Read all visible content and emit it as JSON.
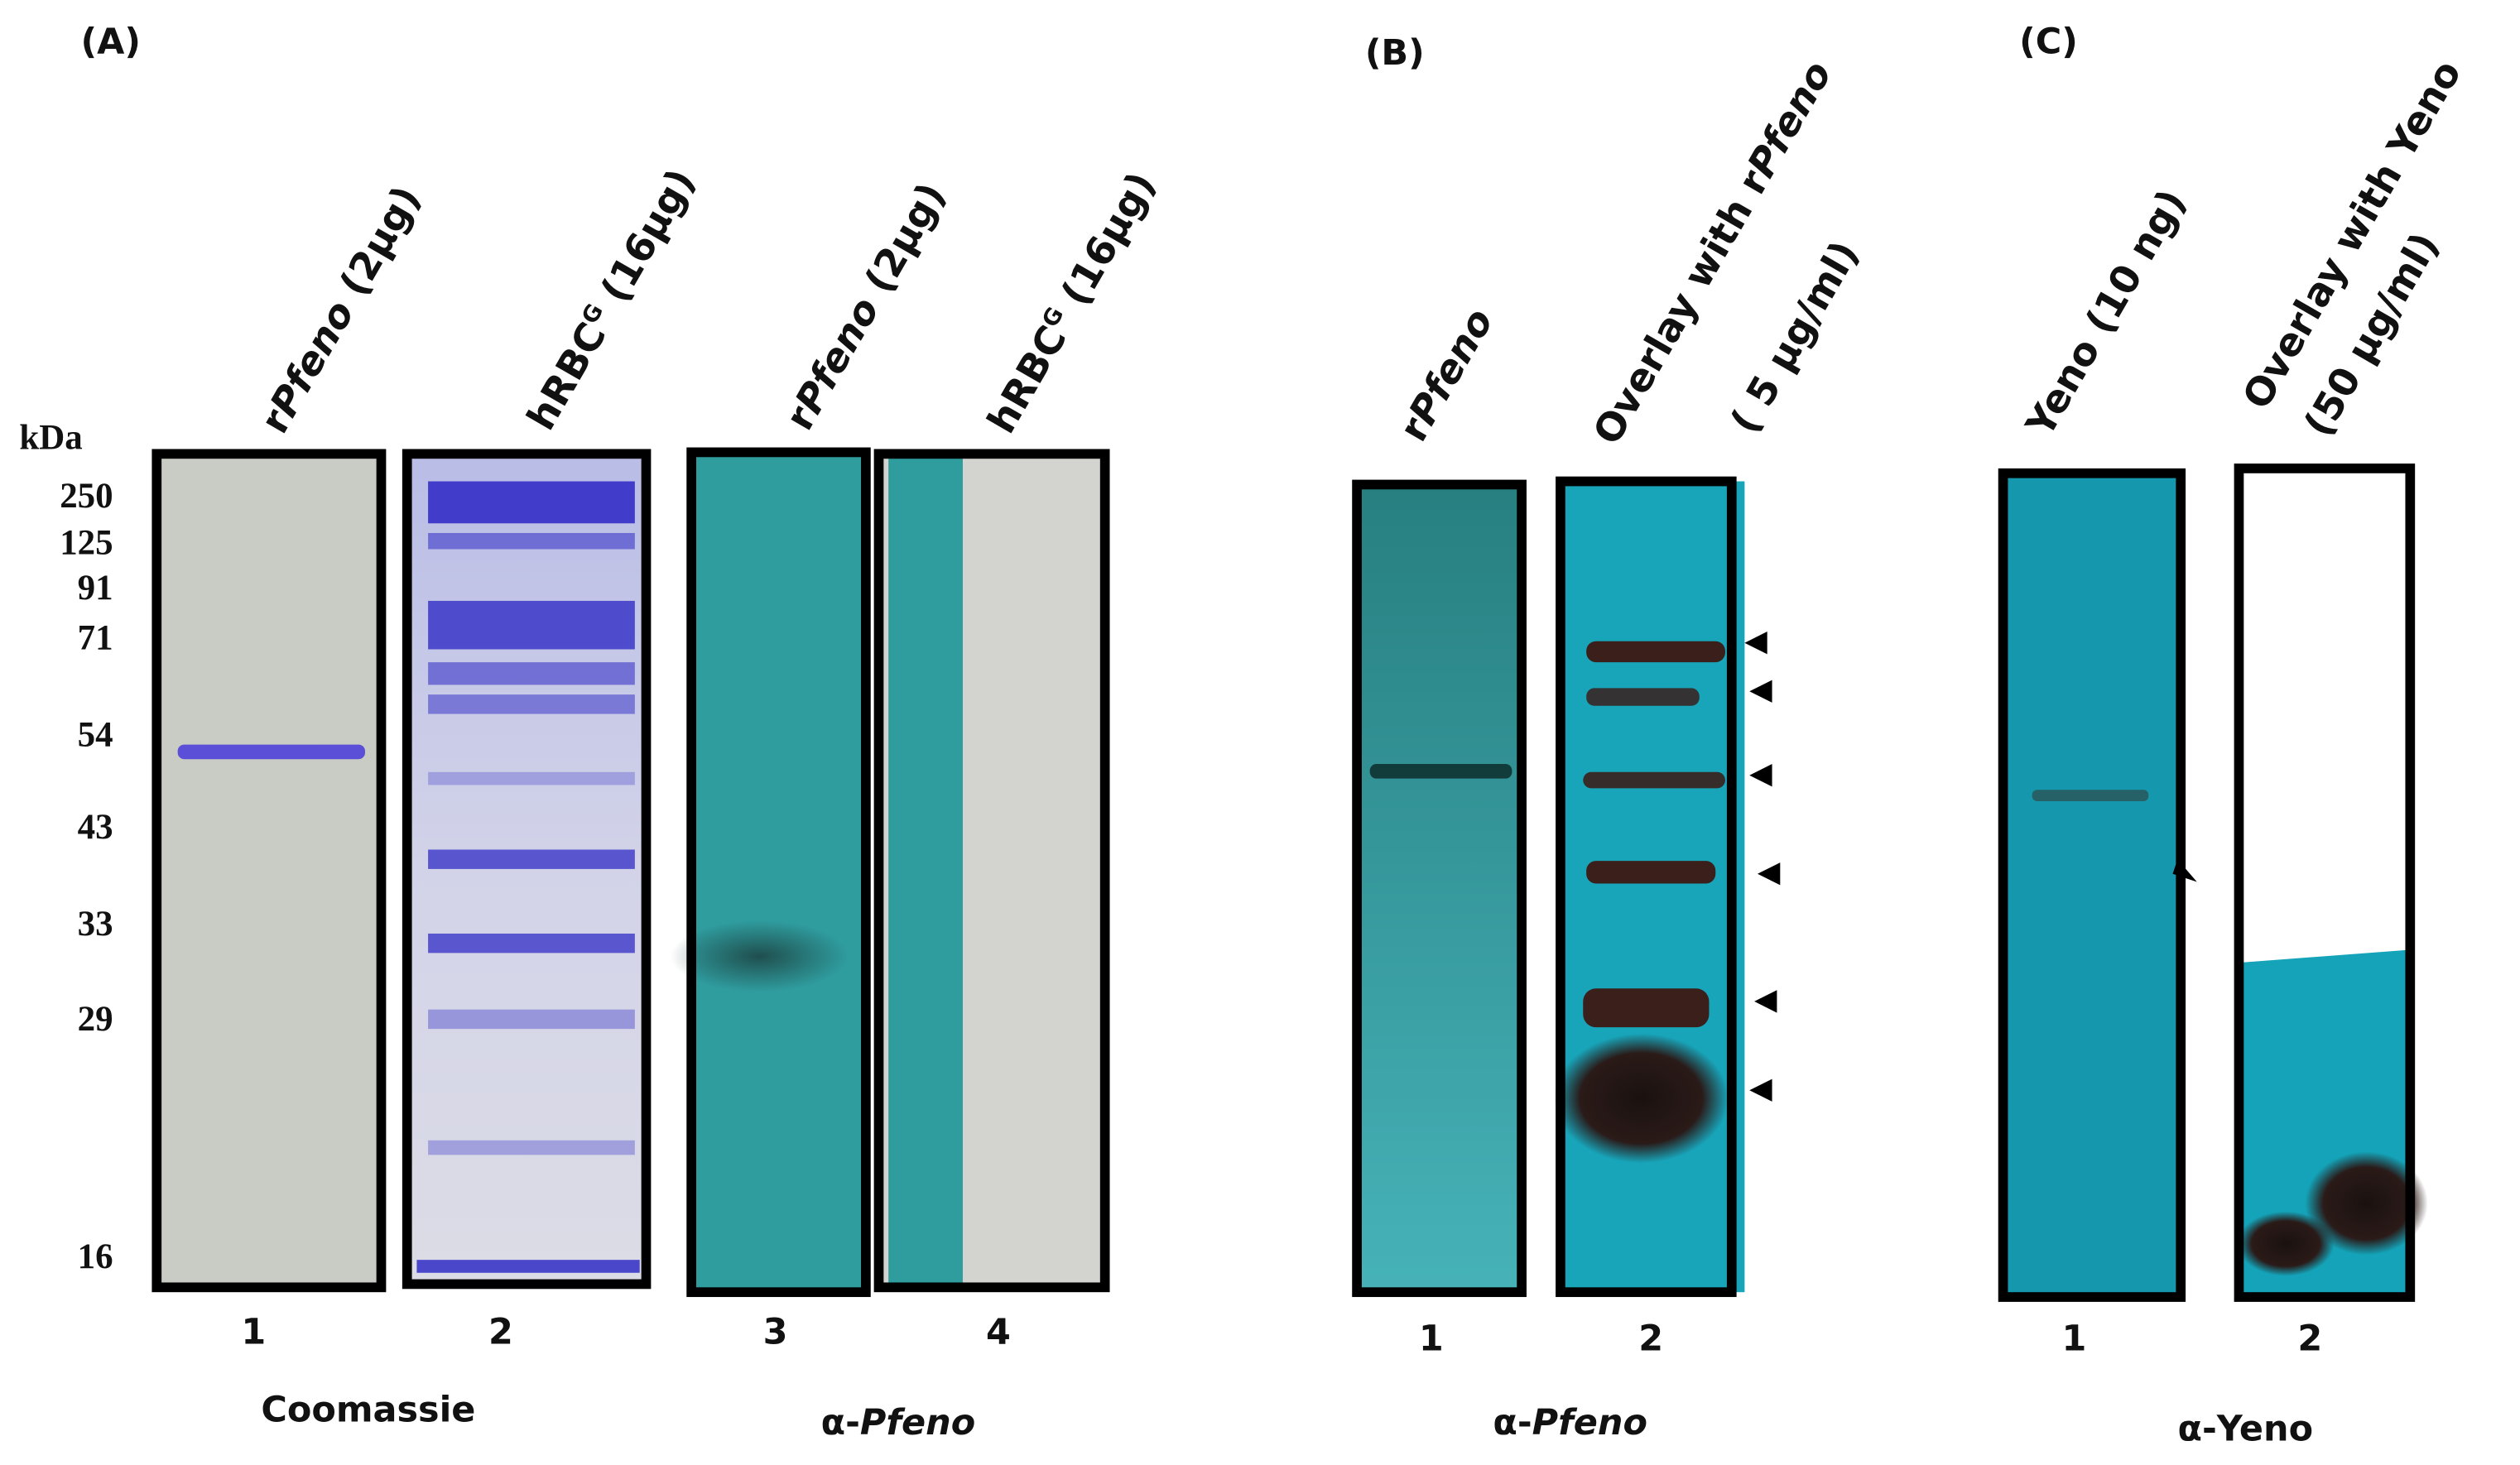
{
  "panels": [
    {
      "label": "(A)",
      "unit": "kDa",
      "markers": [
        250,
        125,
        91,
        71,
        54,
        43,
        33,
        29,
        16
      ],
      "lanes": [
        {
          "label": [
            "r",
            "Pfeno",
            " (2μg)"
          ],
          "number": 1
        },
        {
          "label": [
            "hRBC",
            "G",
            " (16μg)"
          ],
          "number": 2
        },
        {
          "label": [
            "r",
            "Pfeno",
            " (2μg)"
          ],
          "number": 3
        },
        {
          "label": [
            "hRBC",
            "G",
            " (16μg)"
          ],
          "number": 4
        }
      ],
      "captions": [
        [
          "Coomassie"
        ],
        [
          "α-",
          "Pfeno"
        ]
      ]
    },
    {
      "label": "(B)",
      "lanes": [
        {
          "label": [
            "r",
            "Pfeno"
          ],
          "number": 1
        },
        {
          "label": [
            "Overlay with r",
            "Pfeno",
            "( 5 μg/ml)"
          ],
          "number": 2
        }
      ],
      "captions": [
        [
          "α-",
          "Pfeno"
        ]
      ]
    },
    {
      "label": "(C)",
      "lanes": [
        {
          "label": [
            "Yeno (10 ng)"
          ],
          "number": 1
        },
        {
          "label": [
            "Overlay with Yeno",
            "(50 μg/ml)"
          ],
          "number": 2
        }
      ],
      "captions": [
        [
          "α-Yeno"
        ]
      ]
    }
  ]
}
